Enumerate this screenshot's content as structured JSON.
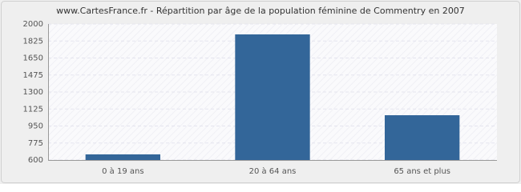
{
  "chart_data": {
    "type": "bar",
    "title": "www.CartesFrance.fr - Répartition par âge de la population féminine de Commentry en 2007",
    "categories": [
      "0 à 19 ans",
      "20 à 64 ans",
      "65 ans et plus"
    ],
    "values": [
      658,
      1893,
      1061
    ],
    "color": "#336699",
    "ylim": [
      600,
      2000
    ],
    "yticks": [
      600,
      775,
      950,
      1125,
      1300,
      1475,
      1650,
      1825,
      2000
    ],
    "grid": true
  }
}
